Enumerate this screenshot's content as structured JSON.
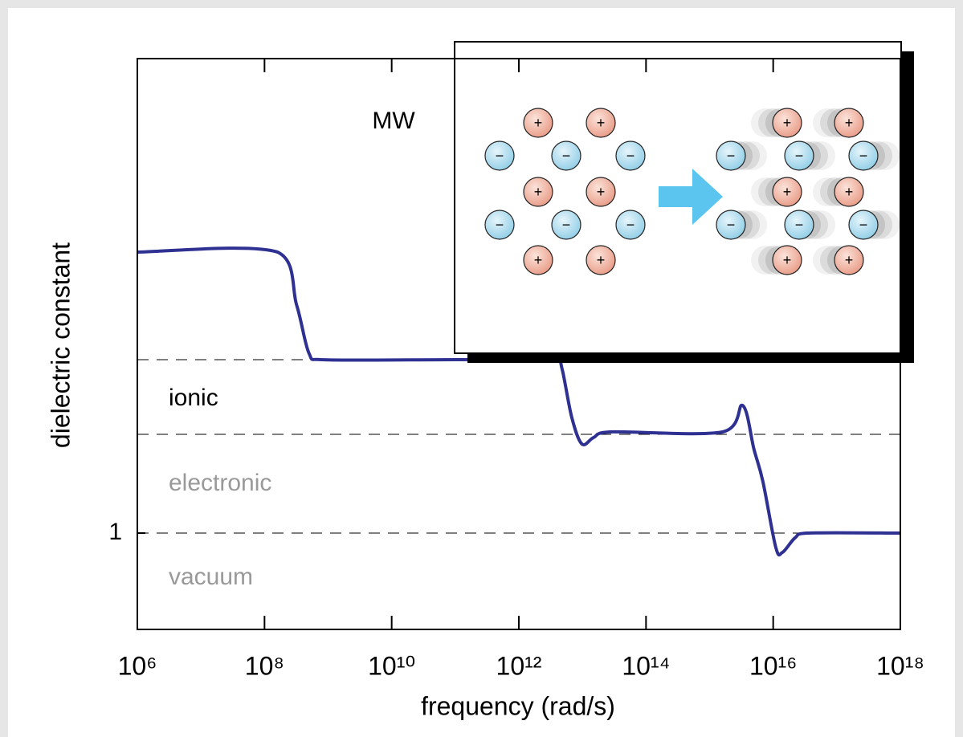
{
  "chart_data": {
    "type": "line",
    "xlabel": "frequency (rad/s)",
    "ylabel": "dielectric constant",
    "xscale": "log",
    "xlim": [
      1000000.0,
      1e+18
    ],
    "xticks": [
      {
        "value": 1000000.0,
        "label": "10⁶"
      },
      {
        "value": 100000000.0,
        "label": "10⁸"
      },
      {
        "value": 10000000000.0,
        "label": "10¹⁰"
      },
      {
        "value": 1000000000000.0,
        "label": "10¹²"
      },
      {
        "value": 100000000000000.0,
        "label": "10¹⁴"
      },
      {
        "value": 1e+16,
        "label": "10¹⁶"
      },
      {
        "value": 1e+18,
        "label": "10¹⁸"
      }
    ],
    "ylim": [
      0,
      5.925
    ],
    "yticks": [
      1
    ],
    "reference_lines": [
      2.8,
      2.025,
      1
    ],
    "annotations": [
      {
        "text": "MW",
        "color": "#000000"
      },
      {
        "text": "ionic",
        "color": "#000000"
      },
      {
        "text": "electronic",
        "color": "#999999"
      },
      {
        "text": "vacuum",
        "color": "#999999"
      }
    ],
    "series": [
      {
        "color": "#2e3192",
        "x": [
          1000000.0,
          160000000.0,
          320000000.0,
          500000000.0,
          790000000.0,
          100000000000.0,
          3900000000000.0,
          4800000000000.0,
          6800000000000.0,
          9800000000000.0,
          15000000000000.0,
          27000000000000.0,
          1600000000000000.0,
          3300000000000000.0,
          5000000000000000.0,
          6900000000000000.0,
          1.1e+16,
          1.4e+16,
          2.2e+16,
          3.4e+16,
          1e+18
        ],
        "values": [
          3.917,
          3.917,
          3.367,
          2.867,
          2.8,
          2.8,
          2.8,
          2.7,
          2.2,
          1.925,
          1.992,
          2.05,
          2.05,
          2.325,
          1.867,
          1.533,
          0.85,
          0.8,
          0.95,
          1.0,
          1.0
        ]
      }
    ],
    "inset": {
      "cation": "+",
      "anion": "−"
    }
  }
}
